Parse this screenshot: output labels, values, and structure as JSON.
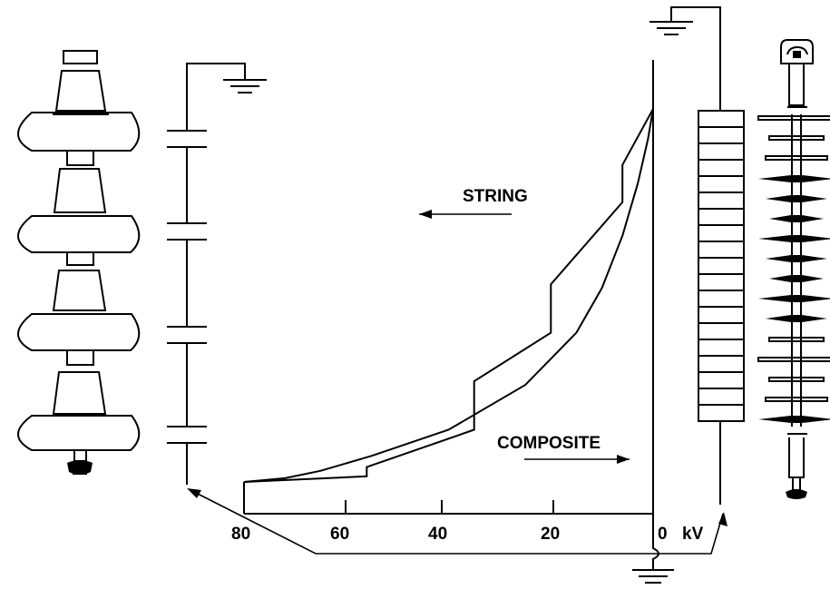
{
  "labels": {
    "string": "STRING",
    "composite": "COMPOSITE"
  },
  "axis": {
    "ticks": [
      "80",
      "60",
      "40",
      "20",
      "0"
    ],
    "unit": "kV"
  },
  "colors": {
    "line": "#000000",
    "background": "#ffffff",
    "shed_fill": "#000000"
  },
  "chart_data": {
    "type": "line",
    "x_unit": "kV",
    "xlim": [
      80,
      0
    ],
    "series": [
      {
        "name": "STRING",
        "x": [
          0,
          6,
          6,
          20,
          20,
          35,
          35,
          56,
          56,
          80
        ],
        "y": [
          1.0,
          0.85,
          0.75,
          0.53,
          0.4,
          0.27,
          0.14,
          0.04,
          0.015,
          0.0
        ]
      },
      {
        "name": "COMPOSITE",
        "x": [
          0,
          1,
          3,
          6,
          10,
          15,
          25,
          40,
          55,
          65,
          72,
          80
        ],
        "y": [
          1.0,
          0.92,
          0.8,
          0.66,
          0.52,
          0.4,
          0.26,
          0.14,
          0.07,
          0.03,
          0.01,
          0.0
        ]
      }
    ]
  }
}
